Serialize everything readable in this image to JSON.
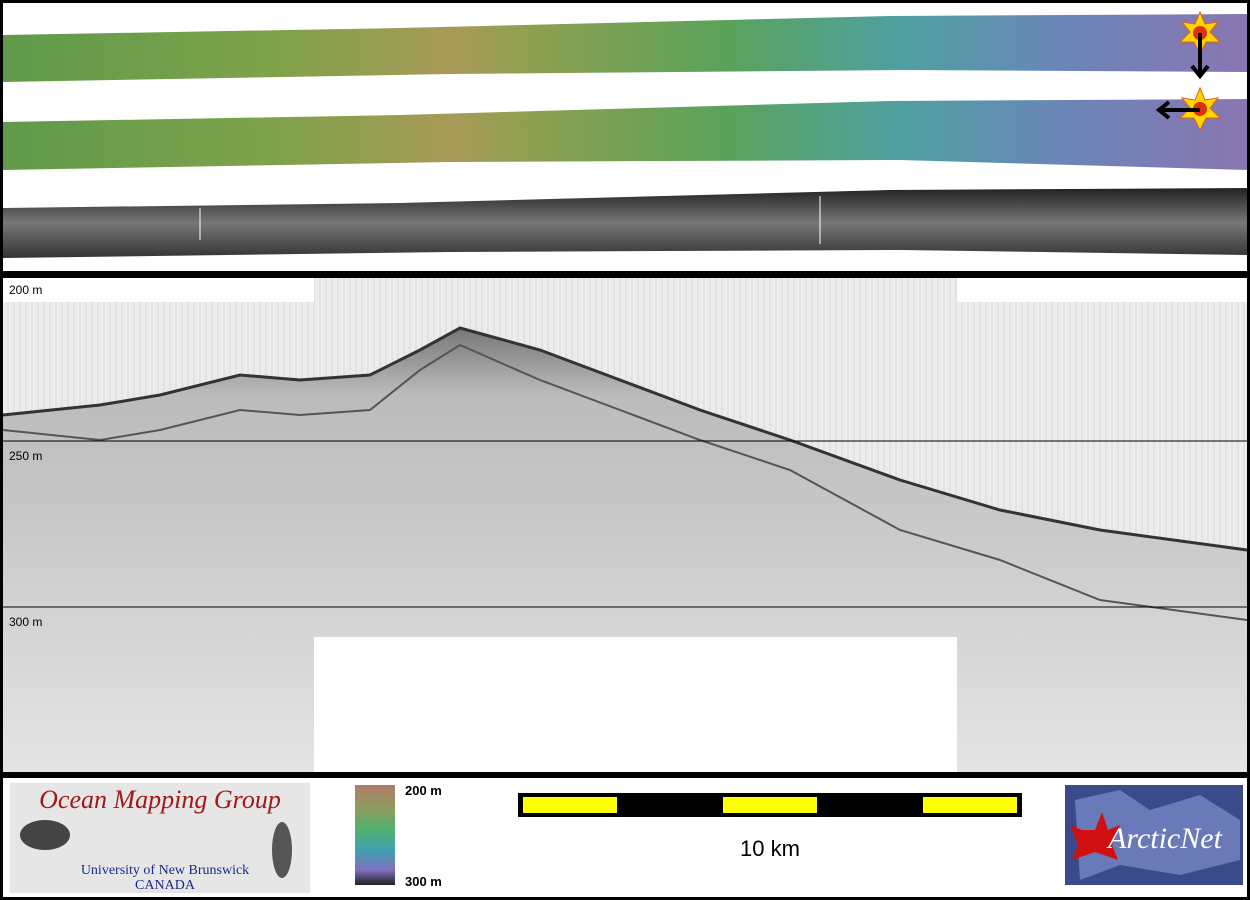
{
  "profile": {
    "depth_labels": [
      "200 m",
      "250 m",
      "300 m"
    ]
  },
  "footer": {
    "ogm_logo": {
      "title": "Ocean Mapping Group",
      "subtitle": "University of New Brunswick",
      "country": "CANADA"
    },
    "colorbar": {
      "top_label": "200 m",
      "bottom_label": "300 m"
    },
    "scale_bar": {
      "label": "10 km"
    },
    "arcticnet_logo": {
      "label": "ArcticNet"
    }
  }
}
